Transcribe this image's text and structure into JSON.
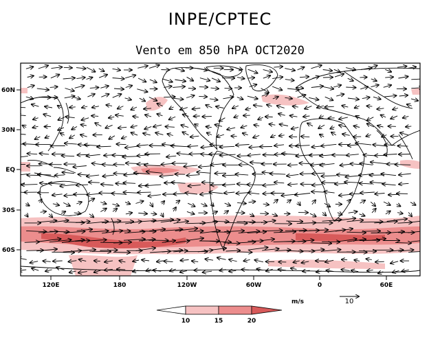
{
  "header": {
    "org": "INPE/CPTEC"
  },
  "map": {
    "title": "Vento em 850 hPA OCT2020",
    "lat_labels": [
      "60N",
      "30N",
      "EQ",
      "30S",
      "60S"
    ],
    "lon_labels": [
      "120E",
      "180",
      "120W",
      "60W",
      "0",
      "60E"
    ],
    "shading_legend": {
      "unit": "m/s",
      "levels": [
        "10",
        "15",
        "20"
      ],
      "colors": [
        "#ffffff",
        "#f6c2c2",
        "#ec8d8d",
        "#d85a5a"
      ]
    },
    "vector_reference": {
      "unit": "m/s",
      "value": "10"
    },
    "colors": {
      "coast": "#000000",
      "frame": "#000000"
    }
  }
}
